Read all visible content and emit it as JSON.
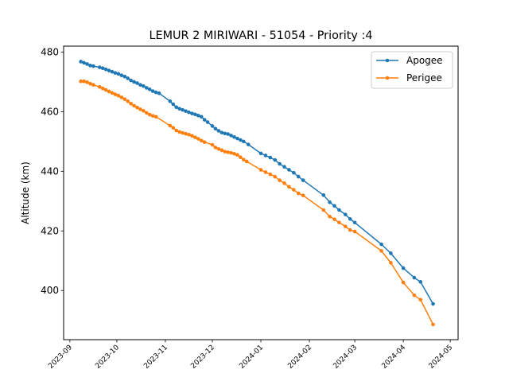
{
  "chart_data": {
    "type": "line",
    "title": "LEMUR 2 MIRIWARI - 51054 - Priority :4",
    "xlabel": "",
    "ylabel": "Altitude (km)",
    "xlim": [
      "2023-08-28",
      "2024-05-06"
    ],
    "ylim": [
      383.5,
      482
    ],
    "x_ticks": [
      "2023-09",
      "2023-10",
      "2023-11",
      "2023-12",
      "2024-01",
      "2024-02",
      "2024-03",
      "2024-04",
      "2024-05"
    ],
    "y_ticks": [
      400,
      420,
      440,
      460,
      480
    ],
    "grid": false,
    "legend_position": "top-right",
    "series": [
      {
        "name": "Apogee",
        "color": "#1f77b4",
        "points": [
          [
            "2023-09-08",
            476.8
          ],
          [
            "2023-09-10",
            476.4
          ],
          [
            "2023-09-12",
            476.0
          ],
          [
            "2023-09-14",
            475.5
          ],
          [
            "2023-09-16",
            475.3
          ],
          [
            "2023-09-20",
            474.9
          ],
          [
            "2023-09-22",
            474.6
          ],
          [
            "2023-09-24",
            474.2
          ],
          [
            "2023-09-26",
            473.8
          ],
          [
            "2023-09-28",
            473.4
          ],
          [
            "2023-09-30",
            473.0
          ],
          [
            "2023-10-02",
            472.7
          ],
          [
            "2023-10-04",
            472.2
          ],
          [
            "2023-10-06",
            471.8
          ],
          [
            "2023-10-08",
            471.2
          ],
          [
            "2023-10-10",
            470.5
          ],
          [
            "2023-10-12",
            470.0
          ],
          [
            "2023-10-14",
            469.6
          ],
          [
            "2023-10-16",
            469.0
          ],
          [
            "2023-10-18",
            468.6
          ],
          [
            "2023-10-20",
            468.0
          ],
          [
            "2023-10-22",
            467.5
          ],
          [
            "2023-10-24",
            466.9
          ],
          [
            "2023-10-26",
            466.5
          ],
          [
            "2023-10-28",
            466.2
          ],
          [
            "2023-11-04",
            463.5
          ],
          [
            "2023-11-06",
            462.5
          ],
          [
            "2023-11-08",
            461.5
          ],
          [
            "2023-11-10",
            461.0
          ],
          [
            "2023-11-12",
            460.6
          ],
          [
            "2023-11-14",
            460.2
          ],
          [
            "2023-11-16",
            459.8
          ],
          [
            "2023-11-18",
            459.4
          ],
          [
            "2023-11-20",
            459.1
          ],
          [
            "2023-11-22",
            458.7
          ],
          [
            "2023-11-24",
            458.3
          ],
          [
            "2023-11-26",
            457.3
          ],
          [
            "2023-11-28",
            456.5
          ],
          [
            "2023-12-01",
            455.2
          ],
          [
            "2023-12-03",
            454.3
          ],
          [
            "2023-12-05",
            453.6
          ],
          [
            "2023-12-07",
            453.0
          ],
          [
            "2023-12-09",
            452.7
          ],
          [
            "2023-12-11",
            452.5
          ],
          [
            "2023-12-13",
            452.0
          ],
          [
            "2023-12-15",
            451.5
          ],
          [
            "2023-12-17",
            451.0
          ],
          [
            "2023-12-19",
            450.5
          ],
          [
            "2023-12-21",
            450.0
          ],
          [
            "2023-12-24",
            449.0
          ],
          [
            "2024-01-01",
            446.0
          ],
          [
            "2024-01-04",
            445.3
          ],
          [
            "2024-01-07",
            444.6
          ],
          [
            "2024-01-10",
            443.8
          ],
          [
            "2024-01-13",
            442.5
          ],
          [
            "2024-01-16",
            441.5
          ],
          [
            "2024-01-19",
            440.5
          ],
          [
            "2024-01-22",
            439.5
          ],
          [
            "2024-01-25",
            438.2
          ],
          [
            "2024-01-28",
            437.0
          ],
          [
            "2024-02-10",
            432.0
          ],
          [
            "2024-02-14",
            429.6
          ],
          [
            "2024-02-17",
            428.4
          ],
          [
            "2024-02-20",
            427.0
          ],
          [
            "2024-02-24",
            425.5
          ],
          [
            "2024-02-27",
            424.0
          ],
          [
            "2024-03-01",
            422.8
          ],
          [
            "2024-03-18",
            415.5
          ],
          [
            "2024-03-24",
            412.5
          ],
          [
            "2024-04-01",
            407.5
          ],
          [
            "2024-04-08",
            404.3
          ],
          [
            "2024-04-12",
            402.9
          ],
          [
            "2024-04-20",
            395.5
          ]
        ]
      },
      {
        "name": "Perigee",
        "color": "#ff7f0e",
        "points": [
          [
            "2023-09-08",
            470.2
          ],
          [
            "2023-09-10",
            470.2
          ],
          [
            "2023-09-12",
            469.9
          ],
          [
            "2023-09-14",
            469.4
          ],
          [
            "2023-09-16",
            469.0
          ],
          [
            "2023-09-20",
            468.3
          ],
          [
            "2023-09-22",
            467.8
          ],
          [
            "2023-09-24",
            467.3
          ],
          [
            "2023-09-26",
            466.8
          ],
          [
            "2023-09-28",
            466.3
          ],
          [
            "2023-09-30",
            465.8
          ],
          [
            "2023-10-02",
            465.4
          ],
          [
            "2023-10-04",
            464.8
          ],
          [
            "2023-10-06",
            464.2
          ],
          [
            "2023-10-08",
            463.5
          ],
          [
            "2023-10-10",
            462.7
          ],
          [
            "2023-10-12",
            462.0
          ],
          [
            "2023-10-14",
            461.4
          ],
          [
            "2023-10-16",
            460.8
          ],
          [
            "2023-10-18",
            460.3
          ],
          [
            "2023-10-20",
            459.6
          ],
          [
            "2023-10-22",
            459.0
          ],
          [
            "2023-10-24",
            458.6
          ],
          [
            "2023-10-26",
            458.3
          ],
          [
            "2023-11-04",
            455.3
          ],
          [
            "2023-11-06",
            454.6
          ],
          [
            "2023-11-08",
            453.7
          ],
          [
            "2023-11-10",
            453.2
          ],
          [
            "2023-11-12",
            452.9
          ],
          [
            "2023-11-14",
            452.6
          ],
          [
            "2023-11-16",
            452.3
          ],
          [
            "2023-11-18",
            451.9
          ],
          [
            "2023-11-20",
            451.4
          ],
          [
            "2023-11-22",
            450.9
          ],
          [
            "2023-11-24",
            450.3
          ],
          [
            "2023-11-26",
            449.8
          ],
          [
            "2023-12-01",
            448.9
          ],
          [
            "2023-12-03",
            448.0
          ],
          [
            "2023-12-05",
            447.5
          ],
          [
            "2023-12-07",
            447.1
          ],
          [
            "2023-12-09",
            446.6
          ],
          [
            "2023-12-11",
            446.4
          ],
          [
            "2023-12-13",
            446.2
          ],
          [
            "2023-12-15",
            445.9
          ],
          [
            "2023-12-17",
            445.5
          ],
          [
            "2023-12-19",
            444.7
          ],
          [
            "2023-12-21",
            443.9
          ],
          [
            "2023-12-23",
            443.3
          ],
          [
            "2024-01-01",
            440.5
          ],
          [
            "2024-01-04",
            439.7
          ],
          [
            "2024-01-07",
            439.0
          ],
          [
            "2024-01-10",
            438.2
          ],
          [
            "2024-01-13",
            437.0
          ],
          [
            "2024-01-16",
            436.0
          ],
          [
            "2024-01-19",
            434.8
          ],
          [
            "2024-01-22",
            433.8
          ],
          [
            "2024-01-25",
            432.6
          ],
          [
            "2024-01-28",
            431.9
          ],
          [
            "2024-02-10",
            427.0
          ],
          [
            "2024-02-14",
            424.8
          ],
          [
            "2024-02-17",
            423.9
          ],
          [
            "2024-02-20",
            422.8
          ],
          [
            "2024-02-24",
            421.5
          ],
          [
            "2024-02-27",
            420.3
          ],
          [
            "2024-03-01",
            419.8
          ],
          [
            "2024-03-18",
            413.3
          ],
          [
            "2024-03-24",
            409.3
          ],
          [
            "2024-04-01",
            402.7
          ],
          [
            "2024-04-08",
            398.4
          ],
          [
            "2024-04-12",
            396.9
          ],
          [
            "2024-04-20",
            388.6
          ]
        ]
      }
    ]
  }
}
